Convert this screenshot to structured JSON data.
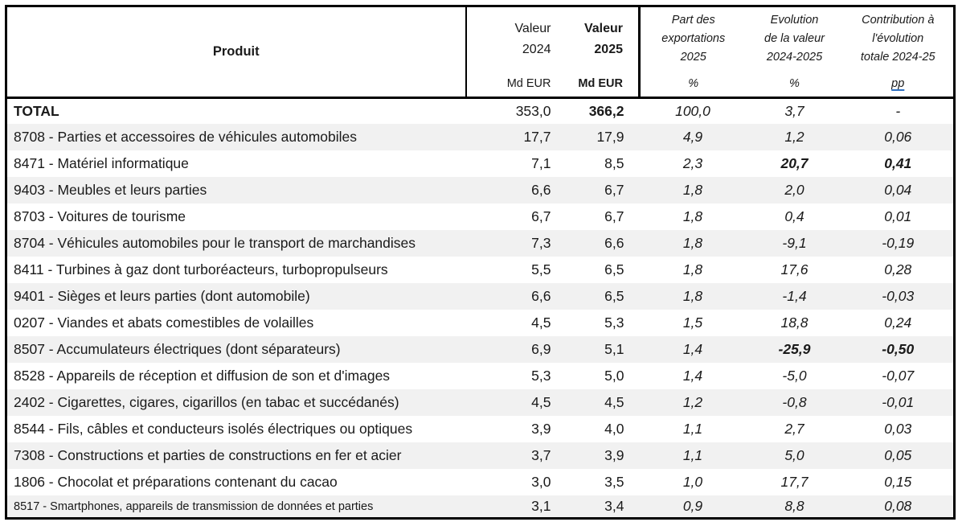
{
  "table": {
    "header": {
      "produit": "Produit",
      "v2024": {
        "line1": "Valeur",
        "line2": "2024",
        "unit": "Md EUR"
      },
      "v2025": {
        "line1": "Valeur",
        "line2": "2025",
        "unit": "Md EUR"
      },
      "part": {
        "line1": "Part des",
        "line2": "exportations",
        "line3": "2025",
        "unit": "%"
      },
      "evo": {
        "line1": "Evolution",
        "line2": "de la valeur",
        "line3": "2024-2025",
        "unit": "%"
      },
      "contrib": {
        "line1": "Contribution à",
        "line2": "l'évolution",
        "line3": "totale 2024-25",
        "unit": "pp"
      }
    },
    "row_flags": {
      "2": "bold-change",
      "9": "bold-change",
      "15": "small"
    },
    "colors": {
      "banding": "#f1f1f1",
      "border": "#000000",
      "text": "#1a1a1a",
      "pp_link_underline": "#2d6fc1"
    }
  },
  "chart_data": {
    "type": "table",
    "columns": [
      "Produit",
      "Valeur 2024 (Md EUR)",
      "Valeur 2025 (Md EUR)",
      "Part des exportations 2025 (%)",
      "Evolution de la valeur 2024-2025 (%)",
      "Contribution à l'évolution totale 2024-25 (pp)"
    ],
    "rows": [
      [
        "TOTAL",
        "353,0",
        "366,2",
        "100,0",
        "3,7",
        "-"
      ],
      [
        "8708 - Parties et accessoires de véhicules automobiles",
        "17,7",
        "17,9",
        "4,9",
        "1,2",
        "0,06"
      ],
      [
        "8471 - Matériel informatique",
        "7,1",
        "8,5",
        "2,3",
        "20,7",
        "0,41"
      ],
      [
        "9403 - Meubles et leurs parties",
        "6,6",
        "6,7",
        "1,8",
        "2,0",
        "0,04"
      ],
      [
        "8703 - Voitures de tourisme",
        "6,7",
        "6,7",
        "1,8",
        "0,4",
        "0,01"
      ],
      [
        "8704 - Véhicules automobiles pour le transport de marchandises",
        "7,3",
        "6,6",
        "1,8",
        "-9,1",
        "-0,19"
      ],
      [
        "8411 - Turbines à gaz dont turboréacteurs, turbopropulseurs",
        "5,5",
        "6,5",
        "1,8",
        "17,6",
        "0,28"
      ],
      [
        "9401 - Sièges et leurs parties (dont automobile)",
        "6,6",
        "6,5",
        "1,8",
        "-1,4",
        "-0,03"
      ],
      [
        "0207 - Viandes et abats comestibles de volailles",
        "4,5",
        "5,3",
        "1,5",
        "18,8",
        "0,24"
      ],
      [
        "8507 - Accumulateurs électriques (dont séparateurs)",
        "6,9",
        "5,1",
        "1,4",
        "-25,9",
        "-0,50"
      ],
      [
        "8528 - Appareils de réception et diffusion de son et d'images",
        "5,3",
        "5,0",
        "1,4",
        "-5,0",
        "-0,07"
      ],
      [
        "2402 - Cigarettes, cigares, cigarillos (en tabac et succédanés)",
        "4,5",
        "4,5",
        "1,2",
        "-0,8",
        "-0,01"
      ],
      [
        "8544 - Fils, câbles et conducteurs isolés électriques ou optiques",
        "3,9",
        "4,0",
        "1,1",
        "2,7",
        "0,03"
      ],
      [
        "7308 - Constructions et parties de constructions en fer et acier",
        "3,7",
        "3,9",
        "1,1",
        "5,0",
        "0,05"
      ],
      [
        "1806 - Chocolat et préparations contenant du cacao",
        "3,0",
        "3,5",
        "1,0",
        "17,7",
        "0,15"
      ],
      [
        "8517 - Smartphones, appareils de transmission de données et parties",
        "3,1",
        "3,4",
        "0,9",
        "8,8",
        "0,08"
      ]
    ]
  }
}
